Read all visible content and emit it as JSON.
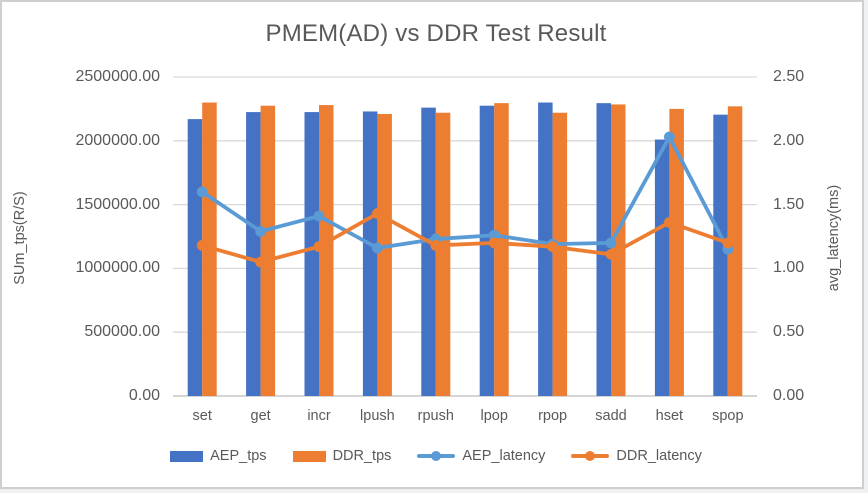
{
  "window": {
    "background": "#ffffff",
    "border_color": "#d0cece"
  },
  "colors": {
    "gridline": "#d9d9d9",
    "axis_line": "#c8c6c6",
    "text": "#595959",
    "bar_blue": "#4472C4",
    "bar_orange": "#ED7D31",
    "line_blue": "#5B9BD5",
    "line_orange": "#ED7D31"
  },
  "chart_data": {
    "type": "combo-bar-line",
    "title": "PMEM(AD) vs DDR Test Result",
    "categories": [
      "set",
      "get",
      "incr",
      "lpush",
      "rpush",
      "lpop",
      "rpop",
      "sadd",
      "hset",
      "spop"
    ],
    "series": [
      {
        "name": "AEP_tps",
        "type": "bar",
        "axis": "left",
        "color": "#4472C4",
        "values": [
          2170000,
          2225000,
          2225000,
          2230000,
          2260000,
          2275000,
          2300000,
          2295000,
          2010000,
          2205000
        ]
      },
      {
        "name": "DDR_tps",
        "type": "bar",
        "axis": "left",
        "color": "#ED7D31",
        "values": [
          2300000,
          2275000,
          2280000,
          2210000,
          2220000,
          2295000,
          2220000,
          2285000,
          2250000,
          2270000
        ]
      },
      {
        "name": "AEP_latency",
        "type": "line",
        "axis": "right",
        "color": "#5B9BD5",
        "values": [
          1.6,
          1.29,
          1.41,
          1.16,
          1.23,
          1.26,
          1.19,
          1.2,
          2.03,
          1.15
        ]
      },
      {
        "name": "DDR_latency",
        "type": "line",
        "axis": "right",
        "color": "#ED7D31",
        "values": [
          1.18,
          1.05,
          1.17,
          1.43,
          1.18,
          1.2,
          1.17,
          1.11,
          1.36,
          1.2
        ]
      }
    ],
    "left_axis": {
      "label": "SUm_tps(R/S)",
      "min": 0,
      "max": 2500000,
      "step": 500000,
      "decimals": 2,
      "tick_labels": [
        "0.00",
        "500000.00",
        "1000000.00",
        "1500000.00",
        "2000000.00",
        "2500000.00"
      ]
    },
    "right_axis": {
      "label": "avg_latency(ms)",
      "min": 0,
      "max": 2.5,
      "step": 0.5,
      "decimals": 2,
      "tick_labels": [
        "0.00",
        "0.50",
        "1.00",
        "1.50",
        "2.00",
        "2.50"
      ]
    },
    "grid": true,
    "legend_position": "bottom"
  }
}
